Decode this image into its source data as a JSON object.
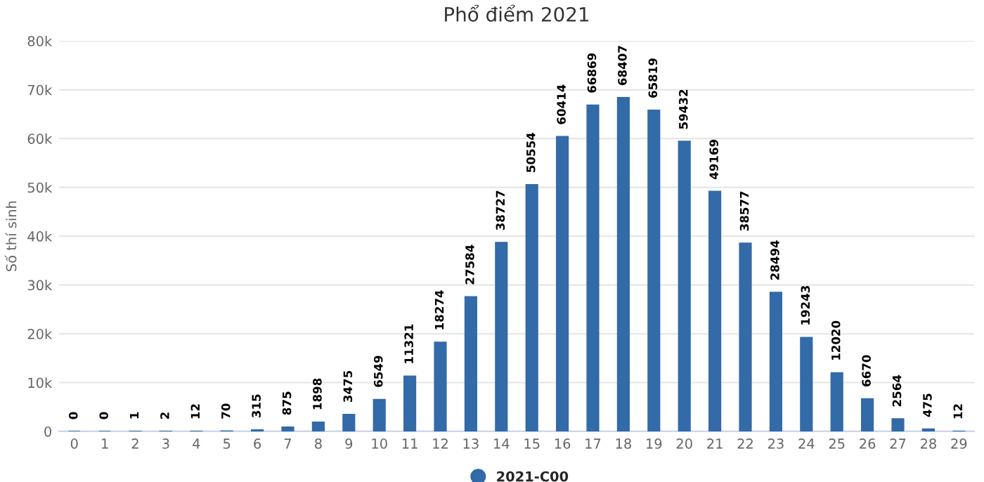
{
  "chart_data": {
    "type": "bar",
    "title": "Phổ điểm 2021",
    "ylabel": "Số thí sinh",
    "categories": [
      "0",
      "1",
      "2",
      "3",
      "4",
      "5",
      "6",
      "7",
      "8",
      "9",
      "10",
      "11",
      "12",
      "13",
      "14",
      "15",
      "16",
      "17",
      "18",
      "19",
      "20",
      "21",
      "22",
      "23",
      "24",
      "25",
      "26",
      "27",
      "28",
      "29"
    ],
    "series": [
      {
        "name": "2021-C00",
        "color": "#336aa8",
        "values": [
          0,
          0,
          1,
          2,
          12,
          70,
          315,
          875,
          1898,
          3475,
          6549,
          11321,
          18274,
          27584,
          38727,
          50554,
          60414,
          66869,
          68407,
          65819,
          59432,
          49169,
          38577,
          28494,
          19243,
          12020,
          6670,
          2564,
          475,
          12
        ]
      }
    ],
    "ylim": [
      0,
      80000
    ],
    "yticks": [
      {
        "value": 0,
        "label": "0"
      },
      {
        "value": 10000,
        "label": "10k"
      },
      {
        "value": 20000,
        "label": "20k"
      },
      {
        "value": 30000,
        "label": "30k"
      },
      {
        "value": 40000,
        "label": "40k"
      },
      {
        "value": 50000,
        "label": "50k"
      },
      {
        "value": 60000,
        "label": "60k"
      },
      {
        "value": 70000,
        "label": "70k"
      },
      {
        "value": 80000,
        "label": "80k"
      }
    ],
    "grid": "y",
    "legend": "bottom",
    "data_labels": true
  }
}
